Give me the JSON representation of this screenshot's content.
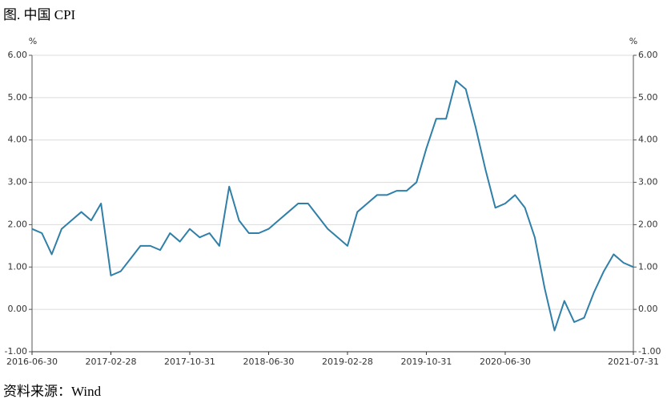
{
  "chart_data": {
    "type": "line",
    "title": "图. 中国 CPI",
    "source": "资料来源：Wind",
    "y_unit": "%",
    "y2_unit": "%",
    "categories": [
      "2016-06-30",
      null,
      null,
      null,
      null,
      null,
      null,
      null,
      "2017-02-28",
      null,
      null,
      null,
      null,
      null,
      null,
      null,
      "2017-10-31",
      null,
      null,
      null,
      null,
      null,
      null,
      null,
      "2018-06-30",
      null,
      null,
      null,
      null,
      null,
      null,
      null,
      "2019-02-28",
      null,
      null,
      null,
      null,
      null,
      null,
      null,
      "2019-10-31",
      null,
      null,
      null,
      null,
      null,
      null,
      null,
      "2020-06-30",
      null,
      null,
      null,
      null,
      null,
      null,
      null,
      null,
      null,
      null,
      null,
      null,
      "2021-07-31"
    ],
    "values": [
      1.9,
      1.8,
      1.3,
      1.9,
      2.1,
      2.3,
      2.1,
      2.5,
      0.8,
      0.9,
      1.2,
      1.5,
      1.5,
      1.4,
      1.8,
      1.6,
      1.9,
      1.7,
      1.8,
      1.5,
      2.9,
      2.1,
      1.8,
      1.8,
      1.9,
      2.1,
      2.3,
      2.5,
      2.5,
      2.2,
      1.9,
      1.7,
      1.5,
      2.3,
      2.5,
      2.7,
      2.7,
      2.8,
      2.8,
      3.0,
      3.8,
      4.5,
      4.5,
      5.4,
      5.2,
      4.3,
      3.3,
      2.4,
      2.5,
      2.7,
      2.4,
      1.7,
      0.5,
      -0.5,
      0.2,
      -0.3,
      -0.2,
      0.4,
      0.9,
      1.3,
      1.1,
      1.0
    ],
    "color": "#2f7fa8",
    "ylim": [
      -1,
      6
    ],
    "yticks": [
      {
        "value": -1,
        "label": "-1.00"
      },
      {
        "value": 0,
        "label": "0.00"
      },
      {
        "value": 1,
        "label": "1.00"
      },
      {
        "value": 2,
        "label": "2.00"
      },
      {
        "value": 3,
        "label": "3.00"
      },
      {
        "value": 4,
        "label": "4.00"
      },
      {
        "value": 5,
        "label": "5.00"
      },
      {
        "value": 6,
        "label": "6.00"
      }
    ],
    "y2lim": [
      -1,
      6
    ],
    "y2ticks": [
      {
        "value": -1,
        "label": "-1.00"
      },
      {
        "value": 0,
        "label": "0.00"
      },
      {
        "value": 1,
        "label": "1.00"
      },
      {
        "value": 2,
        "label": "2.00"
      },
      {
        "value": 3,
        "label": "3.00"
      },
      {
        "value": 4,
        "label": "4.00"
      },
      {
        "value": 5,
        "label": "5.00"
      },
      {
        "value": 6,
        "label": "6.00"
      }
    ],
    "grid": true
  }
}
